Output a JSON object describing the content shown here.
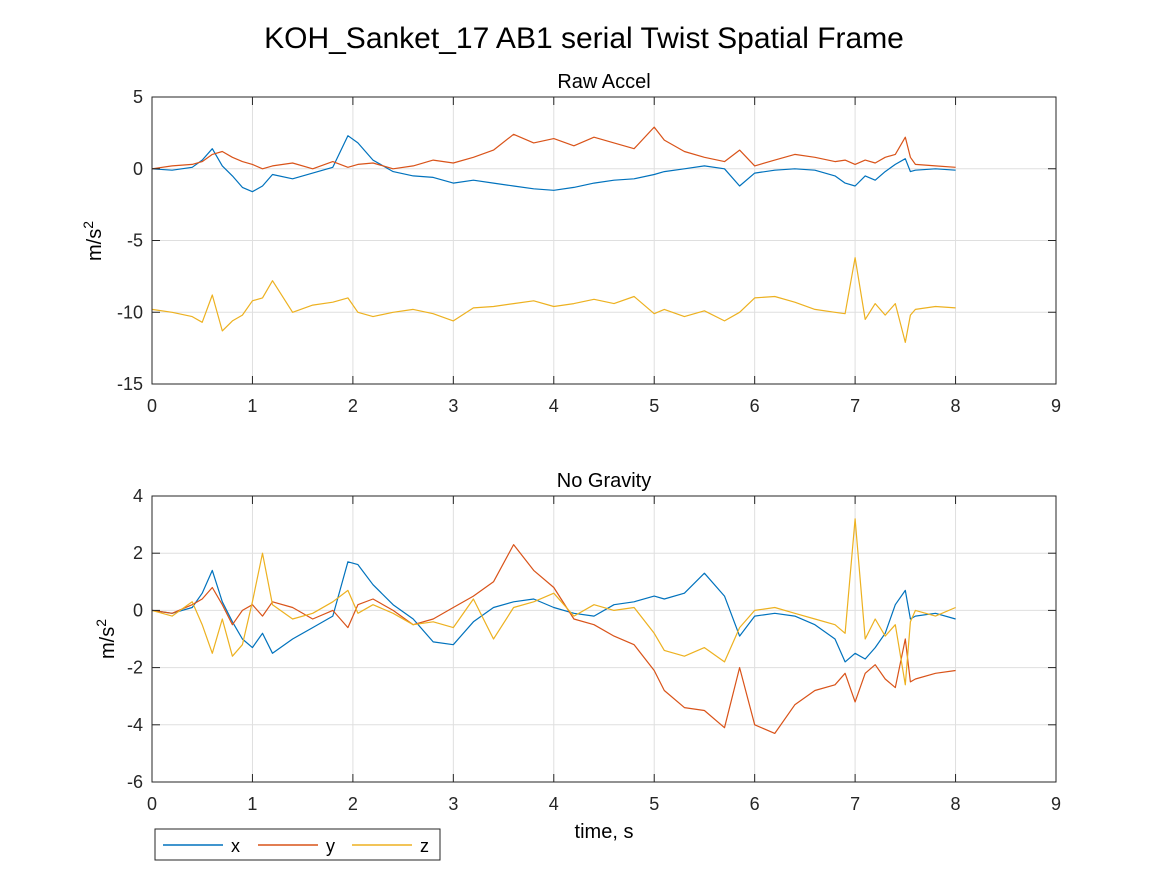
{
  "figure": {
    "title": "KOH_Sanket_17 AB1 serial Twist Spatial Frame"
  },
  "chart_data": [
    {
      "type": "line",
      "title": "Raw Accel",
      "xlabel": "",
      "ylabel": "m/s",
      "ylabel_superscript": "2",
      "xlim": [
        0,
        9
      ],
      "ylim": [
        -15,
        5
      ],
      "xticks": [
        0,
        1,
        2,
        3,
        4,
        5,
        6,
        7,
        8,
        9
      ],
      "yticks": [
        -15,
        -10,
        -5,
        0,
        5
      ],
      "grid": true,
      "x": [
        0,
        0.2,
        0.4,
        0.5,
        0.6,
        0.7,
        0.8,
        0.9,
        1.0,
        1.1,
        1.2,
        1.4,
        1.6,
        1.8,
        1.95,
        2.05,
        2.2,
        2.4,
        2.6,
        2.8,
        3.0,
        3.2,
        3.4,
        3.6,
        3.8,
        4.0,
        4.2,
        4.4,
        4.6,
        4.8,
        5.0,
        5.1,
        5.3,
        5.5,
        5.7,
        5.85,
        6.0,
        6.2,
        6.4,
        6.6,
        6.8,
        6.9,
        7.0,
        7.1,
        7.2,
        7.3,
        7.4,
        7.5,
        7.55,
        7.6,
        7.8,
        8.0
      ],
      "series": [
        {
          "name": "x",
          "color": "#0072BD",
          "values": [
            0,
            -0.1,
            0.1,
            0.6,
            1.4,
            0.2,
            -0.5,
            -1.3,
            -1.6,
            -1.2,
            -0.4,
            -0.7,
            -0.3,
            0.1,
            2.3,
            1.8,
            0.6,
            -0.2,
            -0.5,
            -0.6,
            -1.0,
            -0.8,
            -1.0,
            -1.2,
            -1.4,
            -1.5,
            -1.3,
            -1.0,
            -0.8,
            -0.7,
            -0.4,
            -0.2,
            0.0,
            0.2,
            0.0,
            -1.2,
            -0.3,
            -0.1,
            0.0,
            -0.1,
            -0.5,
            -1.0,
            -1.2,
            -0.5,
            -0.8,
            -0.2,
            0.3,
            0.7,
            -0.2,
            -0.1,
            0.0,
            -0.1
          ]
        },
        {
          "name": "y",
          "color": "#D95319",
          "values": [
            0,
            0.2,
            0.3,
            0.5,
            1.0,
            1.2,
            0.8,
            0.5,
            0.3,
            0.0,
            0.2,
            0.4,
            0.0,
            0.5,
            0.1,
            0.3,
            0.4,
            0.0,
            0.2,
            0.6,
            0.4,
            0.8,
            1.3,
            2.4,
            1.8,
            2.1,
            1.6,
            2.2,
            1.8,
            1.4,
            2.9,
            2.0,
            1.2,
            0.8,
            0.5,
            1.3,
            0.2,
            0.6,
            1.0,
            0.8,
            0.5,
            0.6,
            0.3,
            0.6,
            0.4,
            0.8,
            1.0,
            2.2,
            0.8,
            0.3,
            0.2,
            0.1
          ]
        },
        {
          "name": "z",
          "color": "#EDB120",
          "values": [
            -9.8,
            -10.0,
            -10.3,
            -10.7,
            -8.8,
            -11.3,
            -10.6,
            -10.2,
            -9.2,
            -9.0,
            -7.8,
            -10.0,
            -9.5,
            -9.3,
            -9.0,
            -10.0,
            -10.3,
            -10.0,
            -9.8,
            -10.1,
            -10.6,
            -9.7,
            -9.6,
            -9.4,
            -9.2,
            -9.6,
            -9.4,
            -9.1,
            -9.4,
            -8.9,
            -10.1,
            -9.8,
            -10.3,
            -9.9,
            -10.6,
            -10.0,
            -9.0,
            -8.9,
            -9.3,
            -9.8,
            -10.0,
            -10.1,
            -6.2,
            -10.5,
            -9.4,
            -10.2,
            -9.4,
            -12.1,
            -10.2,
            -9.8,
            -9.6,
            -9.7
          ]
        }
      ]
    },
    {
      "type": "line",
      "title": "No Gravity",
      "xlabel": "time, s",
      "ylabel": "m/s",
      "ylabel_superscript": "2",
      "xlim": [
        0,
        9
      ],
      "ylim": [
        -6,
        4
      ],
      "xticks": [
        0,
        1,
        2,
        3,
        4,
        5,
        6,
        7,
        8,
        9
      ],
      "yticks": [
        -6,
        -4,
        -2,
        0,
        2,
        4
      ],
      "grid": true,
      "x": [
        0,
        0.2,
        0.4,
        0.5,
        0.6,
        0.7,
        0.8,
        0.9,
        1.0,
        1.1,
        1.2,
        1.4,
        1.6,
        1.8,
        1.95,
        2.05,
        2.2,
        2.4,
        2.6,
        2.8,
        3.0,
        3.2,
        3.4,
        3.6,
        3.8,
        4.0,
        4.2,
        4.4,
        4.6,
        4.8,
        5.0,
        5.1,
        5.3,
        5.5,
        5.7,
        5.85,
        6.0,
        6.2,
        6.4,
        6.6,
        6.8,
        6.9,
        7.0,
        7.1,
        7.2,
        7.3,
        7.4,
        7.5,
        7.55,
        7.6,
        7.8,
        8.0
      ],
      "series": [
        {
          "name": "x",
          "color": "#0072BD",
          "values": [
            0,
            -0.1,
            0.1,
            0.6,
            1.4,
            0.3,
            -0.4,
            -1.0,
            -1.3,
            -0.8,
            -1.5,
            -1.0,
            -0.6,
            -0.2,
            1.7,
            1.6,
            0.9,
            0.2,
            -0.3,
            -1.1,
            -1.2,
            -0.4,
            0.1,
            0.3,
            0.4,
            0.1,
            -0.1,
            -0.2,
            0.2,
            0.3,
            0.5,
            0.4,
            0.6,
            1.3,
            0.5,
            -0.9,
            -0.2,
            -0.1,
            -0.2,
            -0.5,
            -1.0,
            -1.8,
            -1.5,
            -1.7,
            -1.3,
            -0.8,
            0.2,
            0.7,
            -0.3,
            -0.2,
            -0.1,
            -0.3
          ]
        },
        {
          "name": "y",
          "color": "#D95319",
          "values": [
            0,
            -0.1,
            0.2,
            0.4,
            0.8,
            0.2,
            -0.5,
            0.0,
            0.2,
            -0.2,
            0.3,
            0.1,
            -0.3,
            0.0,
            -0.6,
            0.2,
            0.4,
            0.0,
            -0.5,
            -0.3,
            0.1,
            0.5,
            1.0,
            2.3,
            1.4,
            0.8,
            -0.3,
            -0.5,
            -0.9,
            -1.2,
            -2.1,
            -2.8,
            -3.4,
            -3.5,
            -4.1,
            -2.0,
            -4.0,
            -4.3,
            -3.3,
            -2.8,
            -2.6,
            -2.2,
            -3.2,
            -2.2,
            -1.9,
            -2.4,
            -2.7,
            -1.0,
            -2.5,
            -2.4,
            -2.2,
            -2.1
          ]
        },
        {
          "name": "z",
          "color": "#EDB120",
          "values": [
            0,
            -0.2,
            0.3,
            -0.5,
            -1.5,
            -0.3,
            -1.6,
            -1.2,
            0.3,
            2.0,
            0.2,
            -0.3,
            -0.1,
            0.3,
            0.7,
            -0.1,
            0.2,
            -0.1,
            -0.5,
            -0.4,
            -0.6,
            0.4,
            -1.0,
            0.1,
            0.3,
            0.6,
            -0.2,
            0.2,
            0.0,
            0.1,
            -0.8,
            -1.4,
            -1.6,
            -1.3,
            -1.8,
            -0.6,
            0.0,
            0.1,
            -0.1,
            -0.3,
            -0.5,
            -0.8,
            3.2,
            -1.0,
            -0.3,
            -0.9,
            -0.5,
            -2.6,
            -0.4,
            0.0,
            -0.2,
            0.1
          ]
        }
      ]
    }
  ],
  "legend": {
    "placement": "bottom-left",
    "items": [
      "x",
      "y",
      "z"
    ]
  }
}
